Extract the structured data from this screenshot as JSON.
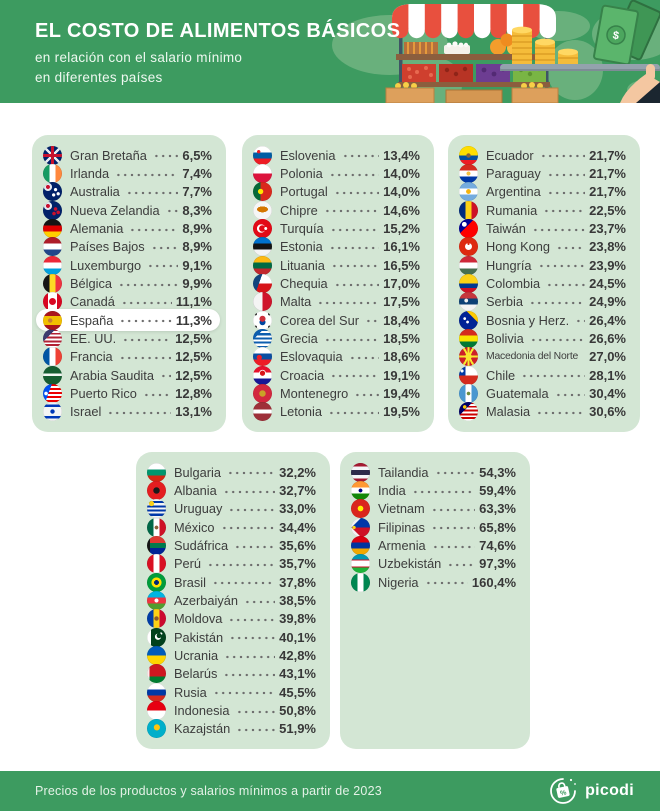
{
  "header": {
    "title": "EL COSTO DE ALIMENTOS BÁSICOS",
    "subtitle_line1": "en relación con el salario mínimo",
    "subtitle_line2": "en diferentes países"
  },
  "footer": {
    "note": "Precios de los productos y salarios mínimos a partir de 2023",
    "brand": "picodi"
  },
  "colors": {
    "header_green": "#3d9b60",
    "map_green": "#69b07c",
    "panel_green": "#d3e6d4",
    "text_dark": "#3d3d3d",
    "highlight_pill": "#ffffff"
  },
  "chart_data": {
    "type": "table",
    "title": "EL COSTO DE ALIMENTOS BÁSICOS",
    "subtitle": "en relación con el salario mínimo en diferentes países",
    "unit": "%",
    "groups": [
      {
        "items": [
          {
            "label": "Gran Bretaña",
            "value": 6.5,
            "display": "6,5%",
            "flag": "linear-gradient(transparent 41%, #c8102e 41% 59%, transparent 59%), linear-gradient(90deg, transparent 41%, #c8102e 41% 59%, transparent 59%), linear-gradient(45deg, transparent 46%, rgba(255,255,255,.9) 46% 54%, transparent 54%), linear-gradient(135deg, transparent 46%, rgba(255,255,255,.9) 46% 54%, transparent 54%), #012169"
          },
          {
            "label": "Irlanda",
            "value": 7.4,
            "display": "7,4%",
            "flag": "linear-gradient(90deg, #169b62 33%, #fff 33% 67%, #ff883e 67%)"
          },
          {
            "label": "Australia",
            "value": 7.7,
            "display": "7,7%",
            "flag": "radial-gradient(circle at 26% 26%, #c8102e 0 1.8px, transparent 2.2px), radial-gradient(circle at 26% 26%, rgba(255,255,255,.9) 0 3.8px, transparent 4.3px), radial-gradient(circle at 66% 40%, #fff 0 1.4px, transparent 1.9px), radial-gradient(circle at 56% 68%, #fff 0 1.4px, transparent 1.9px), radial-gradient(circle at 80% 62%, #fff 0 1.4px, transparent 1.9px), #012169"
          },
          {
            "label": "Nueva Zelandia",
            "value": 8.3,
            "display": "8,3%",
            "flag": "radial-gradient(circle at 26% 26%, #c8102e 0 1.8px, transparent 2.2px), radial-gradient(circle at 26% 26%, rgba(255,255,255,.9) 0 3.8px, transparent 4.3px), radial-gradient(circle at 66% 42%, #c8102e 0 1.6px, transparent 2px), radial-gradient(circle at 58% 66%, #c8102e 0 1.6px, transparent 2px), radial-gradient(circle at 80% 60%, #c8102e 0 1.6px, transparent 2px), #012169"
          },
          {
            "label": "Alemania",
            "value": 8.9,
            "display": "8,9%",
            "flag": "linear-gradient(#141414 33%, #dd0000 33% 67%, #ffce00 67%)"
          },
          {
            "label": "Países Bajos",
            "value": 8.9,
            "display": "8,9%",
            "flag": "linear-gradient(#ae1c28 33%, #fff 33% 67%, #21468b 67%)"
          },
          {
            "label": "Luxemburgo",
            "value": 9.1,
            "display": "9,1%",
            "flag": "linear-gradient(#ed2939 33%, #fff 33% 67%, #00a1de 67%)"
          },
          {
            "label": "Bélgica",
            "value": 9.9,
            "display": "9,9%",
            "flag": "linear-gradient(90deg, #141414 33%, #fdda24 33% 67%, #ef3340 67%)"
          },
          {
            "label": "Canadá",
            "value": 11.1,
            "display": "11,1%",
            "flag": "radial-gradient(circle at 50% 50%, #d80621 0 3.2px, transparent 3.7px), linear-gradient(90deg, #d80621 27%, #fff 27% 73%, #d80621 73%)"
          },
          {
            "label": "España",
            "value": 11.3,
            "display": "11,3%",
            "highlight": true,
            "flag": "radial-gradient(circle at 38% 50%, #c87c32 0 2px, transparent 2.4px), linear-gradient(#aa151b 27%, #f1bf00 27% 73%, #aa151b 73%)"
          },
          {
            "label": "EE. UU.",
            "value": 12.5,
            "display": "12,5%",
            "flag": "linear-gradient(135deg, #3c3b6e 34%, transparent 34%), repeating-linear-gradient(#b22234 0 1.9px, #fff 1.9px 3.8px)"
          },
          {
            "label": "Francia",
            "value": 12.5,
            "display": "12,5%",
            "flag": "linear-gradient(90deg, #0055a4 33%, #fff 33% 67%, #ef4135 67%)"
          },
          {
            "label": "Arabia Saudita",
            "value": 12.5,
            "display": "12,5%",
            "flag": "linear-gradient(transparent 40%, rgba(255,255,255,.95) 40% 52%, transparent 52%), #165d31"
          },
          {
            "label": "Puerto Rico",
            "value": 12.8,
            "display": "12,8%",
            "flag": "radial-gradient(circle at 16% 50%, #fff 0 1.6px, transparent 2px), linear-gradient(110deg, #0050f0 34%, transparent 34.5%), repeating-linear-gradient(#ed0000 0 2px, #fff 2px 4px)"
          },
          {
            "label": "Israel",
            "value": 13.1,
            "display": "13,1%",
            "flag": "radial-gradient(circle at 50% 50%, #0038b8 0 2px, transparent 2.4px), linear-gradient(#f4f4f4 12%, #0038b8 12% 26%, #f4f4f4 26% 74%, #0038b8 74% 88%, #f4f4f4 88%)"
          }
        ]
      },
      {
        "items": [
          {
            "label": "Eslovenia",
            "value": 13.4,
            "display": "13,4%",
            "flag": "radial-gradient(circle at 30% 30%, #ed1c24 0 1.5px, transparent 1.9px), linear-gradient(#fff 33%, #005da4 33% 67%, #ed1c24 67%)"
          },
          {
            "label": "Polonia",
            "value": 14.0,
            "display": "14,0%",
            "flag": "linear-gradient(#fff 50%, #dc143c 50%)"
          },
          {
            "label": "Portugal",
            "value": 14.0,
            "display": "14,0%",
            "flag": "radial-gradient(circle at 40% 50%, #ffe900 0 2.4px, transparent 2.9px), linear-gradient(90deg, #046a38 40%, #da291c 40%)"
          },
          {
            "label": "Chipre",
            "value": 14.6,
            "display": "14,6%",
            "flag": "radial-gradient(5.5px 3px at 50% 44%, #d47600 98%, transparent 100%), #f6f6f6"
          },
          {
            "label": "Turquía",
            "value": 15.2,
            "display": "15,2%",
            "flag": "radial-gradient(circle at 67% 50%, #fff 0 1.3px, transparent 1.7px), radial-gradient(circle at 49% 50%, #e30a17 0 3px, transparent 3.4px), radial-gradient(circle at 43% 50%, #fff 0 4px, transparent 4.4px), #e30a17"
          },
          {
            "label": "Estonia",
            "value": 16.1,
            "display": "16,1%",
            "flag": "linear-gradient(#0072ce 33%, #141414 33% 67%, #f4f4f4 67%)"
          },
          {
            "label": "Lituania",
            "value": 16.5,
            "display": "16,5%",
            "flag": "linear-gradient(#fdb913 33%, #006a44 33% 67%, #c1272d 67%)"
          },
          {
            "label": "Chequia",
            "value": 17.0,
            "display": "17,0%",
            "flag": "linear-gradient(110deg, #11457e 36%, transparent 36.5%), linear-gradient(#fff 50%, #d7141a 50%)"
          },
          {
            "label": "Malta",
            "value": 17.5,
            "display": "17,5%",
            "flag": "linear-gradient(90deg, #f4f4f4 50%, #cf142b 50%)"
          },
          {
            "label": "Corea del Sur",
            "value": 18.4,
            "display": "18,4%",
            "flag": "radial-gradient(circle at 50% 41%, #cd2e3a 0 2.8px, transparent 3.2px), radial-gradient(circle at 50% 59%, #0047a0 0 2.8px, transparent 3.2px), radial-gradient(circle at 14% 16%, #333 0 1.2px, transparent 1.5px), radial-gradient(circle at 86% 84%, #333 0 1.2px, transparent 1.5px), radial-gradient(circle at 86% 16%, #333 0 1.2px, transparent 1.5px), radial-gradient(circle at 14% 84%, #333 0 1.2px, transparent 1.5px), #fff"
          },
          {
            "label": "Grecia",
            "value": 18.5,
            "display": "18,5%",
            "flag": "linear-gradient(135deg, #0d5eaf 28%, transparent 28%), repeating-linear-gradient(#0d5eaf 0 2.1px, #fff 2.1px 4.2px)"
          },
          {
            "label": "Eslovaquia",
            "value": 18.6,
            "display": "18,6%",
            "flag": "radial-gradient(circle at 33% 55%, #ee1c25 0 2.4px, transparent 2.8px), linear-gradient(#fff 33%, #0b4ea2 33% 67%, #ee1c25 67%)"
          },
          {
            "label": "Croacia",
            "value": 19.1,
            "display": "19,1%",
            "flag": "radial-gradient(circle at 50% 38%, #d7141a 0 2.4px, transparent 2.8px), radial-gradient(circle at 50% 38%, #fff 0 3.2px, transparent 3.6px), linear-gradient(#e8112d 33%, #fff 33% 67%, #171796 67%)"
          },
          {
            "label": "Montenegro",
            "value": 19.4,
            "display": "19,4%",
            "flag": "radial-gradient(circle at 50% 50%, #c9a227 0 3px, transparent 3.4px), #d3273e"
          },
          {
            "label": "Letonia",
            "value": 19.5,
            "display": "19,5%",
            "flag": "linear-gradient(#9e3039 40%, #fff 40% 60%, #9e3039 60%)"
          }
        ]
      },
      {
        "items": [
          {
            "label": "Ecuador",
            "value": 21.7,
            "display": "21,7%",
            "flag": "radial-gradient(circle at 50% 50%, #8a6239 0 2px, transparent 2.4px), linear-gradient(#ffdd00 50%, #034ea2 50% 75%, #ed1c24 75%)"
          },
          {
            "label": "Paraguay",
            "value": 21.7,
            "display": "21,7%",
            "flag": "radial-gradient(circle at 50% 50%, #f5c142 0 1.8px, transparent 2.2px), linear-gradient(#d52b1e 33%, #fff 33% 67%, #0038a8 67%)"
          },
          {
            "label": "Argentina",
            "value": 21.7,
            "display": "21,7%",
            "flag": "radial-gradient(circle at 50% 50%, #f6b40e 0 2.2px, transparent 2.6px), linear-gradient(#74acdf 33%, #fff 33% 67%, #74acdf 67%)"
          },
          {
            "label": "Rumania",
            "value": 22.5,
            "display": "22,5%",
            "flag": "linear-gradient(90deg, #002b7f 33%, #fcd116 33% 67%, #ce1126 67%)"
          },
          {
            "label": "Taiwán",
            "value": 23.7,
            "display": "23,7%",
            "flag": "radial-gradient(circle at 28% 28%, #fff 0 2.2px, transparent 2.6px), linear-gradient(135deg, #000095 40%, transparent 40.5%), #fe0000"
          },
          {
            "label": "Hong Kong",
            "value": 23.8,
            "display": "23,8%",
            "flag": "radial-gradient(circle at 50% 36%, #de2910 0 1px, transparent 1.3px), radial-gradient(circle at 50% 50%, #fff 0 3.2px, transparent 3.7px), #de2910"
          },
          {
            "label": "Hungría",
            "value": 23.9,
            "display": "23,9%",
            "flag": "linear-gradient(#ce2939 33%, #fff 33% 67%, #477050 67%)"
          },
          {
            "label": "Colombia",
            "value": 24.5,
            "display": "24,5%",
            "flag": "linear-gradient(#fcd116 50%, #003893 50% 75%, #ce1126 75%)"
          },
          {
            "label": "Serbia",
            "value": 24.9,
            "display": "24,9%",
            "flag": "radial-gradient(circle at 38% 45%, #f0f0f0 0 1.7px, transparent 2.1px), linear-gradient(#c6363c 33%, #0c4076 33% 67%, #f4f4f4 67%)"
          },
          {
            "label": "Bosnia y Herz.",
            "value": 26.4,
            "display": "26,4%",
            "flag": "linear-gradient(225deg, #fecb00 30%, transparent 30.5%), radial-gradient(circle at 30% 40%, #fff 0 1.2px, transparent 1.6px), radial-gradient(circle at 45% 58%, #fff 0 1.2px, transparent 1.6px), #002395"
          },
          {
            "label": "Bolivia",
            "value": 26.6,
            "display": "26,6%",
            "flag": "linear-gradient(#d52b1e 33%, #f9e300 33% 67%, #007934 67%)"
          },
          {
            "label": "Macedonia del Norte",
            "value": 27.0,
            "display": "27,0%",
            "flag": "radial-gradient(circle at 50% 50%, #f8e92e 0 3px, transparent 3.5px), linear-gradient(60deg, transparent 46%, #f8e92e 46% 54%, transparent 54%), linear-gradient(120deg, transparent 46%, #f8e92e 46% 54%, transparent 54%), linear-gradient(transparent 46%, #f8e92e 46% 54%, transparent 54%), linear-gradient(90deg, transparent 46%, #f8e92e 46% 54%, transparent 54%), #ce2028"
          },
          {
            "label": "Chile",
            "value": 28.1,
            "display": "28,1%",
            "flag": "radial-gradient(circle at 16% 26%, #fff 0 1.4px, transparent 1.8px), linear-gradient(transparent 50%, #d52b1e 50%), linear-gradient(90deg, #0039a6 34%, #fff 34%)"
          },
          {
            "label": "Guatemala",
            "value": 30.4,
            "display": "30,4%",
            "flag": "radial-gradient(circle at 50% 50%, #6c8c3c 0 1.6px, transparent 2px), linear-gradient(90deg, #4997d0 33%, #fff 33% 67%, #4997d0 67%)"
          },
          {
            "label": "Malasia",
            "value": 30.6,
            "display": "30,6%",
            "flag": "radial-gradient(circle at 30% 26%, #ffcc00 0 1.6px, transparent 2px), linear-gradient(135deg, #010066 36%, transparent 36.5%), repeating-linear-gradient(#cc0001 0 1.9px, #fff 1.9px 3.8px)"
          }
        ]
      },
      {
        "items": [
          {
            "label": "Bulgaria",
            "value": 32.2,
            "display": "32,2%",
            "flag": "linear-gradient(#fff 33%, #00966e 33% 67%, #d62612 67%)"
          },
          {
            "label": "Albania",
            "value": 32.7,
            "display": "32,7%",
            "flag": "radial-gradient(circle at 50% 50%, #1a1a1a 0 3px, transparent 3.4px), #e41e20"
          },
          {
            "label": "Uruguay",
            "value": 33.0,
            "display": "33,0%",
            "flag": "radial-gradient(circle at 24% 24%, #fcd116 0 2.4px, transparent 2.8px), repeating-linear-gradient(#f4f4f4 0 2.1px, #0038a8 2.1px 4.2px)"
          },
          {
            "label": "México",
            "value": 34.4,
            "display": "34,4%",
            "flag": "radial-gradient(circle at 50% 50%, #8a6239 0 1.7px, transparent 2.1px), linear-gradient(90deg, #006847 33%, #fff 33% 67%, #ce1126 67%)"
          },
          {
            "label": "Sudáfrica",
            "value": 35.6,
            "display": "35,6%",
            "flag": "linear-gradient(90deg, #141414 16%, transparent 16.5%), linear-gradient(#de3831 38%, #007a4d 38% 62%, #002395 62%)"
          },
          {
            "label": "Perú",
            "value": 35.7,
            "display": "35,7%",
            "flag": "linear-gradient(90deg, #d91023 33%, #fff 33% 67%, #d91023 67%)"
          },
          {
            "label": "Brasil",
            "value": 37.8,
            "display": "37,8%",
            "flag": "radial-gradient(circle at 50% 50%, #002776 0 2.4px, #ffdf00 2.4px 4.8px, transparent 5.3px), #009c3b"
          },
          {
            "label": "Azerbaiyán",
            "value": 38.5,
            "display": "38,5%",
            "flag": "radial-gradient(circle at 50% 50%, #fff 0 1.8px, transparent 2.2px), linear-gradient(#00b5e2 33%, #ef3340 33% 67%, #509e2f 67%)"
          },
          {
            "label": "Moldova",
            "value": 39.8,
            "display": "39,8%",
            "flag": "radial-gradient(circle at 50% 50%, #8a5a2b 0 2px, transparent 2.4px), linear-gradient(90deg, #003da5 33%, #fcd116 33% 67%, #cc092f 67%)"
          },
          {
            "label": "Pakistán",
            "value": 40.1,
            "display": "40,1%",
            "flag": "radial-gradient(circle at 64% 40%, #01411c 0 2.3px, transparent 2.7px), radial-gradient(circle at 58% 46%, #fff 0 2.9px, transparent 3.3px), radial-gradient(circle at 74% 30%, #fff 0 1.1px, transparent 1.5px), linear-gradient(90deg, #fff 22%, #01411c 22%)"
          },
          {
            "label": "Ucrania",
            "value": 42.8,
            "display": "42,8%",
            "flag": "linear-gradient(#005bbb 50%, #ffd500 50%)"
          },
          {
            "label": "Belarús",
            "value": 43.1,
            "display": "43,1%",
            "flag": "linear-gradient(90deg, rgba(255,255,255,.92) 13%, transparent 13.5%), linear-gradient(#ce1720 66%, #007c30 66%)"
          },
          {
            "label": "Rusia",
            "value": 45.5,
            "display": "45,5%",
            "flag": "linear-gradient(#fff 33%, #0039a6 33% 67%, #d52b1e 67%)"
          },
          {
            "label": "Indonesia",
            "value": 50.8,
            "display": "50,8%",
            "flag": "linear-gradient(#e70011 50%, #fff 50%)"
          },
          {
            "label": "Kazajstán",
            "value": 51.9,
            "display": "51,9%",
            "flag": "radial-gradient(circle at 52% 44%, #fec50c 0 2.8px, transparent 3.3px), #00afca"
          }
        ]
      },
      {
        "items": [
          {
            "label": "Tailandia",
            "value": 54.3,
            "display": "54,3%",
            "flag": "linear-gradient(#a51931 18%, #f4f5f8 18% 38%, #2d2a4a 38% 62%, #f4f5f8 62% 82%, #a51931 82%)"
          },
          {
            "label": "India",
            "value": 59.4,
            "display": "59,4%",
            "flag": "radial-gradient(circle at 50% 50%, #000080 0 1.7px, transparent 2.1px), linear-gradient(#ff9933 33%, #fff 33% 67%, #138808 67%)"
          },
          {
            "label": "Vietnam",
            "value": 63.3,
            "display": "63,3%",
            "flag": "radial-gradient(circle at 50% 50%, #ffef00 0 2.6px, transparent 3px), #da251d"
          },
          {
            "label": "Filipinas",
            "value": 65.8,
            "display": "65,8%",
            "flag": "radial-gradient(circle at 16% 50%, #fcd116 0 1.5px, transparent 1.9px), linear-gradient(to bottom right, #f2f2f2 26%, transparent 26.5%), linear-gradient(to top right, #f2f2f2 26%, transparent 26.5%), linear-gradient(#0038a8 50%, #ce1126 50%)"
          },
          {
            "label": "Armenia",
            "value": 74.6,
            "display": "74,6%",
            "flag": "linear-gradient(#d90012 33%, #0033a0 33% 67%, #f2a800 67%)"
          },
          {
            "label": "Uzbekistán",
            "value": 97.3,
            "display": "97,3%",
            "flag": "linear-gradient(transparent 30%, #ce1126 30% 33.5%, transparent 33.5% 66.5%, #ce1126 66.5% 70%, transparent 70%), linear-gradient(#0099b5 33%, #fff 33% 67%, #1eb53a 67%)"
          },
          {
            "label": "Nigeria",
            "value": 160.4,
            "display": "160,4%",
            "flag": "linear-gradient(90deg, #008751 33%, #fff 33% 67%, #008751 67%)"
          }
        ]
      }
    ]
  }
}
